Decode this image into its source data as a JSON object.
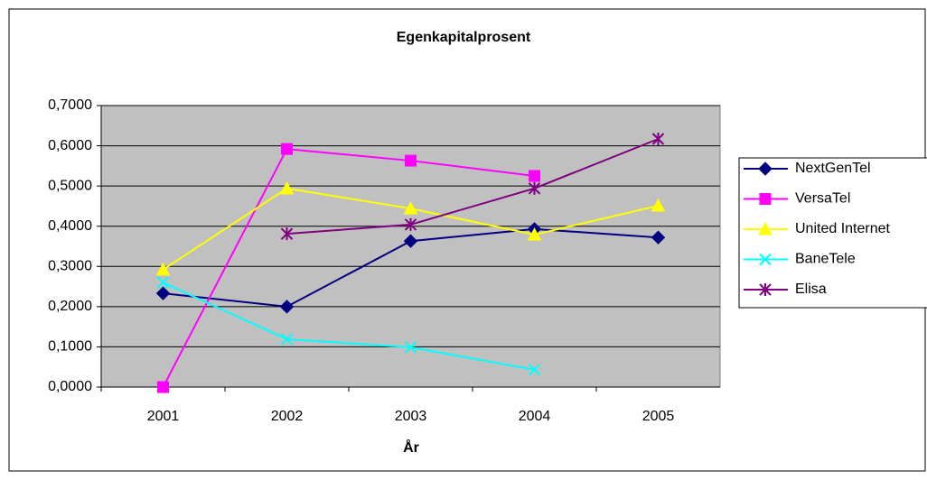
{
  "chart_data": {
    "type": "line",
    "title": "Egenkapitalprosent",
    "x_label": "År",
    "categories": [
      "2001",
      "2002",
      "2003",
      "2004",
      "2005"
    ],
    "series": [
      {
        "name": "NextGenTel",
        "color": "#000080",
        "marker": "diamond",
        "values": [
          0.233,
          0.2,
          0.363,
          0.393,
          0.372
        ]
      },
      {
        "name": "VersaTel",
        "color": "#ff00ff",
        "marker": "square",
        "values": [
          0.0,
          0.592,
          0.563,
          0.525,
          null
        ]
      },
      {
        "name": "United Internet",
        "color": "#ffff00",
        "marker": "triangle",
        "values": [
          0.292,
          0.494,
          0.444,
          0.379,
          0.451
        ]
      },
      {
        "name": "BaneTele",
        "color": "#00ffff",
        "marker": "x",
        "values": [
          0.26,
          0.119,
          0.099,
          0.043,
          null
        ]
      },
      {
        "name": "Elisa",
        "color": "#800080",
        "marker": "star",
        "values": [
          null,
          0.381,
          0.404,
          0.494,
          0.617
        ]
      }
    ],
    "ylim": [
      0,
      0.7
    ],
    "yticks": [
      {
        "value": 0,
        "label": "0,0000"
      },
      {
        "value": 0.1,
        "label": "0,1000"
      },
      {
        "value": 0.2,
        "label": "0,2000"
      },
      {
        "value": 0.3,
        "label": "0,3000"
      },
      {
        "value": 0.4,
        "label": "0,4000"
      },
      {
        "value": 0.5,
        "label": "0,5000"
      },
      {
        "value": 0.6,
        "label": "0,6000"
      },
      {
        "value": 0.7,
        "label": "0,7000"
      }
    ],
    "grid": true,
    "legend": "right",
    "plot_background": "#c0c0c0"
  }
}
